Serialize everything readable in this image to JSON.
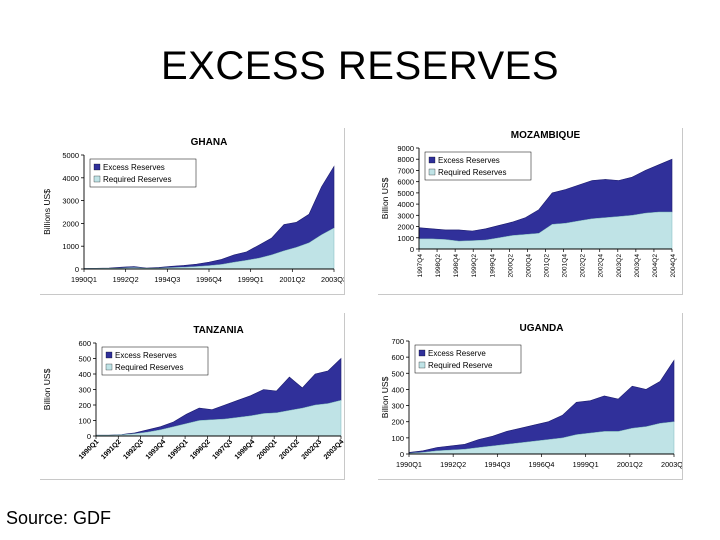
{
  "title": "EXCESS RESERVES",
  "source": "Source: GDF",
  "colors": {
    "excess": "#30309a",
    "required": "#bfe3e6",
    "edge": "#1c1c6e"
  },
  "chart_data": [
    {
      "type": "area",
      "title": "GHANA",
      "ylabel": "Billions US$",
      "xlabel": "",
      "ylim": [
        0,
        5000
      ],
      "yticks": [
        0,
        1000,
        2000,
        3000,
        4000,
        5000
      ],
      "xtick_labels": [
        "1990Q1",
        "1992Q2",
        "1994Q3",
        "1996Q4",
        "1999Q1",
        "2001Q2",
        "2003Q3"
      ],
      "xtick_rotated": false,
      "legend": "top-left",
      "series": [
        {
          "name": "Excess Reserves",
          "values": [
            20,
            30,
            40,
            80,
            110,
            40,
            70,
            120,
            160,
            210,
            300,
            420,
            620,
            750,
            1050,
            1350,
            1950,
            2050,
            2400,
            3600,
            4500
          ]
        },
        {
          "name": "Required Reserves",
          "values": [
            20,
            25,
            30,
            40,
            60,
            30,
            40,
            60,
            80,
            110,
            150,
            200,
            300,
            380,
            480,
            620,
            800,
            950,
            1150,
            1500,
            1800
          ]
        }
      ]
    },
    {
      "type": "area",
      "title": "MOZAMBIQUE",
      "ylabel": "Billion US$",
      "xlabel": "",
      "ylim": [
        0,
        9000
      ],
      "yticks": [
        0,
        1000,
        2000,
        3000,
        4000,
        5000,
        6000,
        7000,
        8000,
        9000
      ],
      "xtick_labels": [
        "1997Q4",
        "1998Q2",
        "1998Q4",
        "1999Q2",
        "1999Q4",
        "2000Q2",
        "2000Q4",
        "2001Q2",
        "2001Q4",
        "2002Q2",
        "2002Q4",
        "2003Q2",
        "2003Q4",
        "2004Q2",
        "2004Q4"
      ],
      "xtick_rotated": true,
      "legend": "top-left",
      "series": [
        {
          "name": "Excess Reserves",
          "values": [
            1900,
            1800,
            1700,
            1700,
            1600,
            1800,
            2100,
            2400,
            2800,
            3500,
            5000,
            5300,
            5700,
            6100,
            6200,
            6100,
            6400,
            7000,
            7500,
            8000
          ]
        },
        {
          "name": "Required Reserves",
          "values": [
            900,
            900,
            850,
            700,
            750,
            800,
            1000,
            1200,
            1300,
            1400,
            2200,
            2300,
            2500,
            2700,
            2800,
            2900,
            3000,
            3200,
            3300,
            3300
          ]
        }
      ]
    },
    {
      "type": "area",
      "title": "TANZANIA",
      "ylabel": "Billion US$",
      "xlabel": "",
      "ylim": [
        0,
        600
      ],
      "yticks": [
        0,
        100,
        200,
        300,
        400,
        500,
        600
      ],
      "xtick_labels": [
        "1990Q1",
        "1991Q2",
        "1992Q3",
        "1993Q4",
        "1995Q1",
        "1996Q2",
        "1997Q3",
        "1998Q4",
        "2000Q1",
        "2001Q2",
        "2002Q3",
        "2003Q4"
      ],
      "xtick_rotated": true,
      "legend": "top-left",
      "series": [
        {
          "name": "Excess Reserves",
          "values": [
            5,
            5,
            10,
            20,
            40,
            60,
            90,
            140,
            180,
            170,
            200,
            230,
            260,
            300,
            290,
            380,
            310,
            400,
            420,
            500
          ]
        },
        {
          "name": "Required Reserves",
          "values": [
            5,
            5,
            8,
            15,
            25,
            40,
            60,
            80,
            100,
            105,
            110,
            120,
            130,
            145,
            150,
            165,
            180,
            200,
            210,
            230
          ]
        }
      ]
    },
    {
      "type": "area",
      "title": "UGANDA",
      "ylabel": "Billion US$",
      "xlabel": "",
      "ylim": [
        0,
        700
      ],
      "yticks": [
        0,
        100,
        200,
        300,
        400,
        500,
        600,
        700
      ],
      "xtick_labels": [
        "1990Q1",
        "1992Q2",
        "1994Q3",
        "1996Q4",
        "1999Q1",
        "2001Q2",
        "2003Q3"
      ],
      "xtick_rotated": false,
      "legend": "top-left",
      "series": [
        {
          "name": "Excess Reserve",
          "values": [
            10,
            20,
            40,
            50,
            60,
            90,
            110,
            140,
            160,
            180,
            200,
            240,
            320,
            330,
            360,
            340,
            420,
            400,
            450,
            580
          ]
        },
        {
          "name": "Required Reserve",
          "values": [
            5,
            10,
            20,
            25,
            30,
            40,
            50,
            60,
            70,
            80,
            90,
            100,
            120,
            130,
            140,
            140,
            160,
            170,
            190,
            200
          ]
        }
      ]
    }
  ]
}
